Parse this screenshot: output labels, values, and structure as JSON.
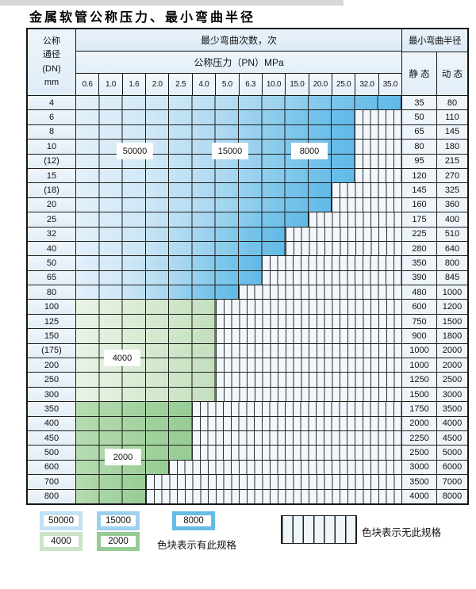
{
  "title": "金属软管公称压力、最小弯曲半径",
  "table": {
    "header": {
      "dn_lines": [
        "公称",
        "通径",
        "(DN)",
        "mm"
      ],
      "cycles_header": "最少弯曲次数，次",
      "pressure_header": "公称压力（PN）MPa",
      "pressure_values": [
        "0.6",
        "1.0",
        "1.6",
        "2.0",
        "2.5",
        "4.0",
        "5.0",
        "6.3",
        "10.0",
        "15.0",
        "20.0",
        "25.0",
        "32.0",
        "35.0"
      ],
      "radius_header": "最小弯曲半径",
      "static_label": "静 态",
      "dynamic_label": "动 态"
    },
    "rows": [
      {
        "dn": "4",
        "colored_cols": 14,
        "zone": "blue",
        "static": "35",
        "dynamic": "80"
      },
      {
        "dn": "6",
        "colored_cols": 12,
        "zone": "blue",
        "static": "50",
        "dynamic": "110"
      },
      {
        "dn": "8",
        "colored_cols": 12,
        "zone": "blue",
        "static": "65",
        "dynamic": "145"
      },
      {
        "dn": "10",
        "colored_cols": 12,
        "zone": "blue",
        "static": "80",
        "dynamic": "180"
      },
      {
        "dn": "(12)",
        "colored_cols": 12,
        "zone": "blue",
        "static": "95",
        "dynamic": "215"
      },
      {
        "dn": "15",
        "colored_cols": 12,
        "zone": "blue",
        "static": "120",
        "dynamic": "270"
      },
      {
        "dn": "(18)",
        "colored_cols": 11,
        "zone": "blue",
        "static": "145",
        "dynamic": "325"
      },
      {
        "dn": "20",
        "colored_cols": 11,
        "zone": "blue",
        "static": "160",
        "dynamic": "360"
      },
      {
        "dn": "25",
        "colored_cols": 10,
        "zone": "blue",
        "static": "175",
        "dynamic": "400"
      },
      {
        "dn": "32",
        "colored_cols": 9,
        "zone": "blue",
        "static": "225",
        "dynamic": "510"
      },
      {
        "dn": "40",
        "colored_cols": 9,
        "zone": "blue",
        "static": "280",
        "dynamic": "640"
      },
      {
        "dn": "50",
        "colored_cols": 8,
        "zone": "blue",
        "static": "350",
        "dynamic": "800"
      },
      {
        "dn": "65",
        "colored_cols": 8,
        "zone": "blue",
        "static": "390",
        "dynamic": "845"
      },
      {
        "dn": "80",
        "colored_cols": 7,
        "zone": "blue",
        "static": "480",
        "dynamic": "1000"
      },
      {
        "dn": "100",
        "colored_cols": 6,
        "zone": "green-light",
        "static": "600",
        "dynamic": "1200"
      },
      {
        "dn": "125",
        "colored_cols": 6,
        "zone": "green-light",
        "static": "750",
        "dynamic": "1500"
      },
      {
        "dn": "150",
        "colored_cols": 6,
        "zone": "green-light",
        "static": "900",
        "dynamic": "1800"
      },
      {
        "dn": "(175)",
        "colored_cols": 6,
        "zone": "green-light",
        "static": "1000",
        "dynamic": "2000"
      },
      {
        "dn": "200",
        "colored_cols": 6,
        "zone": "green-light",
        "static": "1000",
        "dynamic": "2000"
      },
      {
        "dn": "250",
        "colored_cols": 6,
        "zone": "green-light",
        "static": "1250",
        "dynamic": "2500"
      },
      {
        "dn": "300",
        "colored_cols": 6,
        "zone": "green-light",
        "static": "1500",
        "dynamic": "3000"
      },
      {
        "dn": "350",
        "colored_cols": 5,
        "zone": "green-dark",
        "static": "1750",
        "dynamic": "3500"
      },
      {
        "dn": "400",
        "colored_cols": 5,
        "zone": "green-dark",
        "static": "2000",
        "dynamic": "4000"
      },
      {
        "dn": "450",
        "colored_cols": 5,
        "zone": "green-dark",
        "static": "2250",
        "dynamic": "4500"
      },
      {
        "dn": "500",
        "colored_cols": 5,
        "zone": "green-dark",
        "static": "2500",
        "dynamic": "5000"
      },
      {
        "dn": "600",
        "colored_cols": 4,
        "zone": "green-dark",
        "static": "3000",
        "dynamic": "6000"
      },
      {
        "dn": "700",
        "colored_cols": 3,
        "zone": "green-dark",
        "static": "3500",
        "dynamic": "7000"
      },
      {
        "dn": "800",
        "colored_cols": 3,
        "zone": "green-dark",
        "static": "4000",
        "dynamic": "8000"
      }
    ]
  },
  "cycle_labels": [
    {
      "text": "50000"
    },
    {
      "text": "15000"
    },
    {
      "text": "8000"
    },
    {
      "text": "4000"
    },
    {
      "text": "2000"
    }
  ],
  "legend": {
    "items": [
      {
        "label": "50000",
        "color": "#c3e1f4"
      },
      {
        "label": "15000",
        "color": "#9dd1ee"
      },
      {
        "label": "8000",
        "color": "#66bbe7"
      },
      {
        "label": "4000",
        "color": "#cbe4c7"
      },
      {
        "label": "2000",
        "color": "#95cb94"
      }
    ],
    "has_spec_text": "色块表示有此规格",
    "no_spec_text": "色块表示无此规格"
  }
}
